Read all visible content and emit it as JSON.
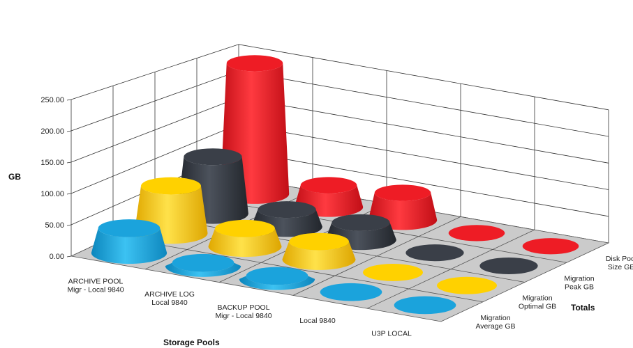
{
  "chart_data": {
    "type": "bar",
    "subtype": "3d-cone",
    "ylabel": "GB",
    "xlabel": "Storage Pools",
    "zlabel": "Totals",
    "ylim": [
      0,
      250
    ],
    "yticks": [
      "0.00",
      "50.00",
      "100.00",
      "150.00",
      "200.00",
      "250.00"
    ],
    "grid": true,
    "categories": [
      [
        "ARCHIVE POOL",
        "Migr - Local 9840"
      ],
      [
        "ARCHIVE LOG",
        "Local 9840"
      ],
      [
        "BACKUP POOL",
        "Migr - Local 9840"
      ],
      [
        "Local 9840"
      ],
      [
        "U3P LOCAL"
      ]
    ],
    "series": [
      {
        "name": [
          "Migration",
          "Average GB"
        ],
        "color": "#1ba3dc",
        "values": [
          40,
          5,
          5,
          0,
          0
        ]
      },
      {
        "name": [
          "Migration",
          "Optimal GB"
        ],
        "color": "#ffd100",
        "values": [
          80,
          30,
          30,
          0,
          0
        ]
      },
      {
        "name": [
          "Migration",
          "Peak GB"
        ],
        "color": "#3a3f48",
        "values": [
          100,
          30,
          30,
          0,
          0
        ]
      },
      {
        "name": [
          "Disk Pool",
          "Size GB"
        ],
        "color": "#ee1c25",
        "values": [
          240,
          40,
          50,
          0,
          0
        ]
      }
    ]
  }
}
